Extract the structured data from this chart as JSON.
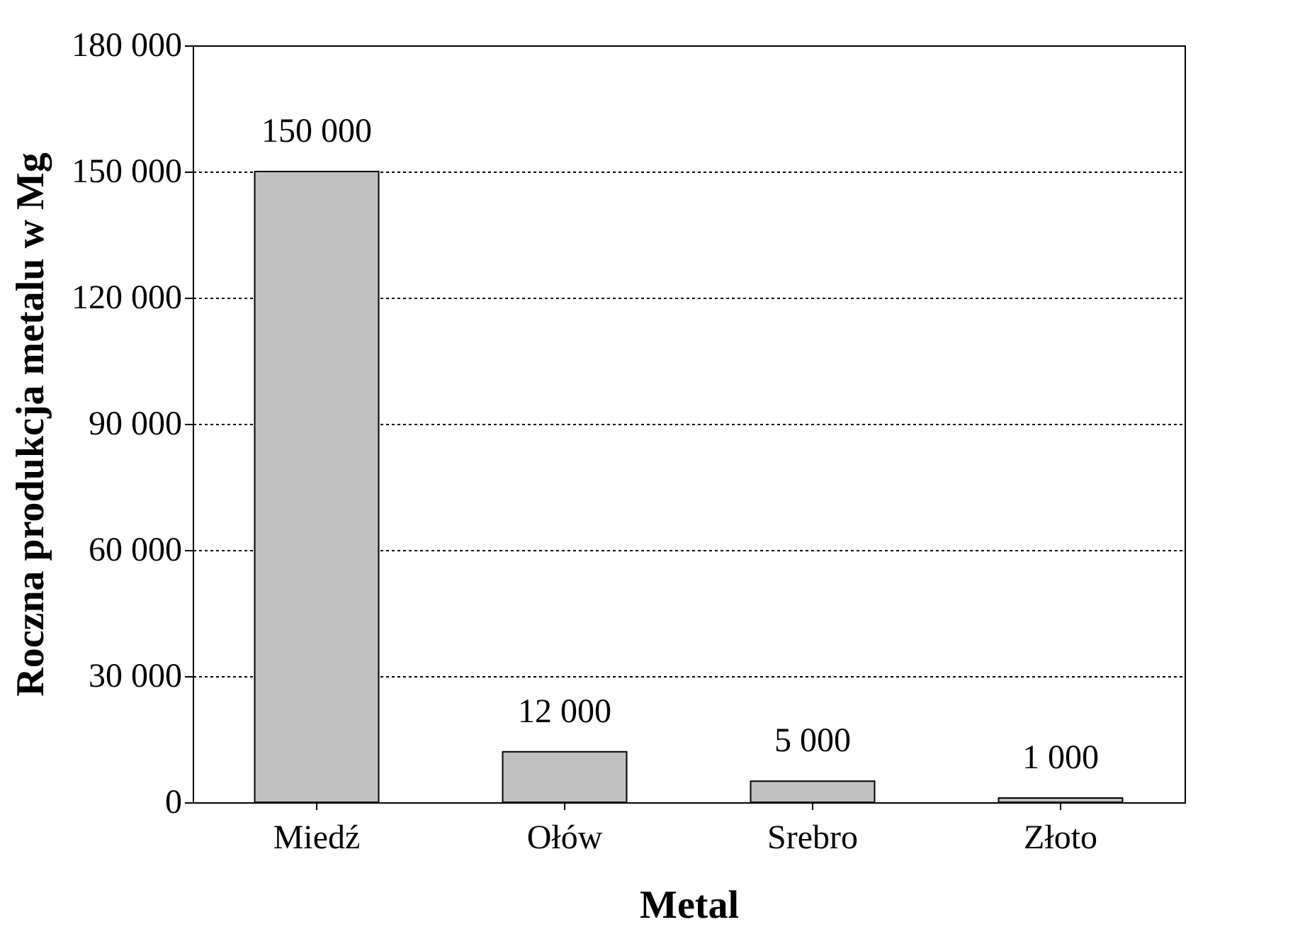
{
  "chart_data": {
    "type": "bar",
    "xlabel": "Metal",
    "ylabel": "Roczna produkcja metalu w Mg",
    "categories": [
      "Miedź",
      "Ołów",
      "Srebro",
      "Złoto"
    ],
    "values": [
      150000,
      12000,
      5000,
      1000
    ],
    "value_labels": [
      "150 000",
      "12 000",
      "5 000",
      "1 000"
    ],
    "color": "#c0c0c0",
    "ylim": [
      0,
      180000
    ],
    "yticks": [
      {
        "value": 0,
        "label": "0"
      },
      {
        "value": 30000,
        "label": "30 000"
      },
      {
        "value": 60000,
        "label": "60 000"
      },
      {
        "value": 90000,
        "label": "90 000"
      },
      {
        "value": 120000,
        "label": "120 000"
      },
      {
        "value": 150000,
        "label": "150 000"
      },
      {
        "value": 180000,
        "label": "180 000"
      }
    ],
    "grid": "y"
  }
}
